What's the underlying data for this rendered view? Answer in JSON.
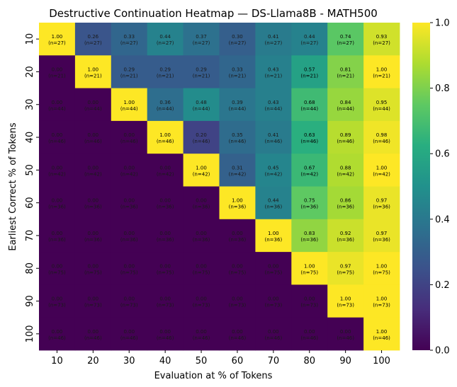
{
  "chart_data": {
    "type": "heatmap",
    "title": "Destructive Continuation Heatmap — DS-Llama8B - MATH500",
    "xlabel": "Evaluation at % of Tokens",
    "ylabel": "Earliest Correct % of Tokens",
    "x_categories": [
      "10",
      "20",
      "30",
      "40",
      "50",
      "60",
      "70",
      "80",
      "90",
      "100"
    ],
    "y_categories": [
      "10",
      "20",
      "30",
      "40",
      "50",
      "60",
      "70",
      "80",
      "90",
      "100"
    ],
    "values": [
      [
        "1.00",
        "0.26",
        "0.33",
        "0.44",
        "0.37",
        "0.30",
        "0.41",
        "0.44",
        "0.74",
        "0.93"
      ],
      [
        "0.00",
        "1.00",
        "0.29",
        "0.29",
        "0.29",
        "0.33",
        "0.43",
        "0.57",
        "0.81",
        "1.00"
      ],
      [
        "0.00",
        "0.00",
        "1.00",
        "0.36",
        "0.48",
        "0.39",
        "0.43",
        "0.68",
        "0.84",
        "0.95"
      ],
      [
        "0.00",
        "0.00",
        "0.00",
        "1.00",
        "0.20",
        "0.35",
        "0.41",
        "0.63",
        "0.89",
        "0.98"
      ],
      [
        "0.00",
        "0.00",
        "0.00",
        "0.00",
        "1.00",
        "0.31",
        "0.45",
        "0.67",
        "0.88",
        "1.00"
      ],
      [
        "0.00",
        "0.00",
        "0.00",
        "0.00",
        "0.00",
        "1.00",
        "0.44",
        "0.75",
        "0.86",
        "0.97"
      ],
      [
        "0.00",
        "0.00",
        "0.00",
        "0.00",
        "0.00",
        "0.00",
        "1.00",
        "0.83",
        "0.92",
        "0.97"
      ],
      [
        "0.00",
        "0.00",
        "0.00",
        "0.00",
        "0.00",
        "0.00",
        "0.00",
        "1.00",
        "0.97",
        "1.00"
      ],
      [
        "0.00",
        "0.00",
        "0.00",
        "0.00",
        "0.00",
        "0.00",
        "0.00",
        "0.00",
        "1.00",
        "1.00"
      ],
      [
        "0.00",
        "0.00",
        "0.00",
        "0.00",
        "0.00",
        "0.00",
        "0.00",
        "0.00",
        "0.00",
        "1.00"
      ]
    ],
    "counts": [
      "(n=27)",
      "(n=21)",
      "(n=44)",
      "(n=46)",
      "(n=42)",
      "(n=36)",
      "(n=36)",
      "(n=75)",
      "(n=73)",
      "(n=46)"
    ],
    "colorscale": "viridis",
    "vmin": 0.0,
    "vmax": 1.0,
    "colorbar_ticks": [
      "0.0",
      "0.2",
      "0.4",
      "0.6",
      "0.8",
      "1.0"
    ]
  }
}
